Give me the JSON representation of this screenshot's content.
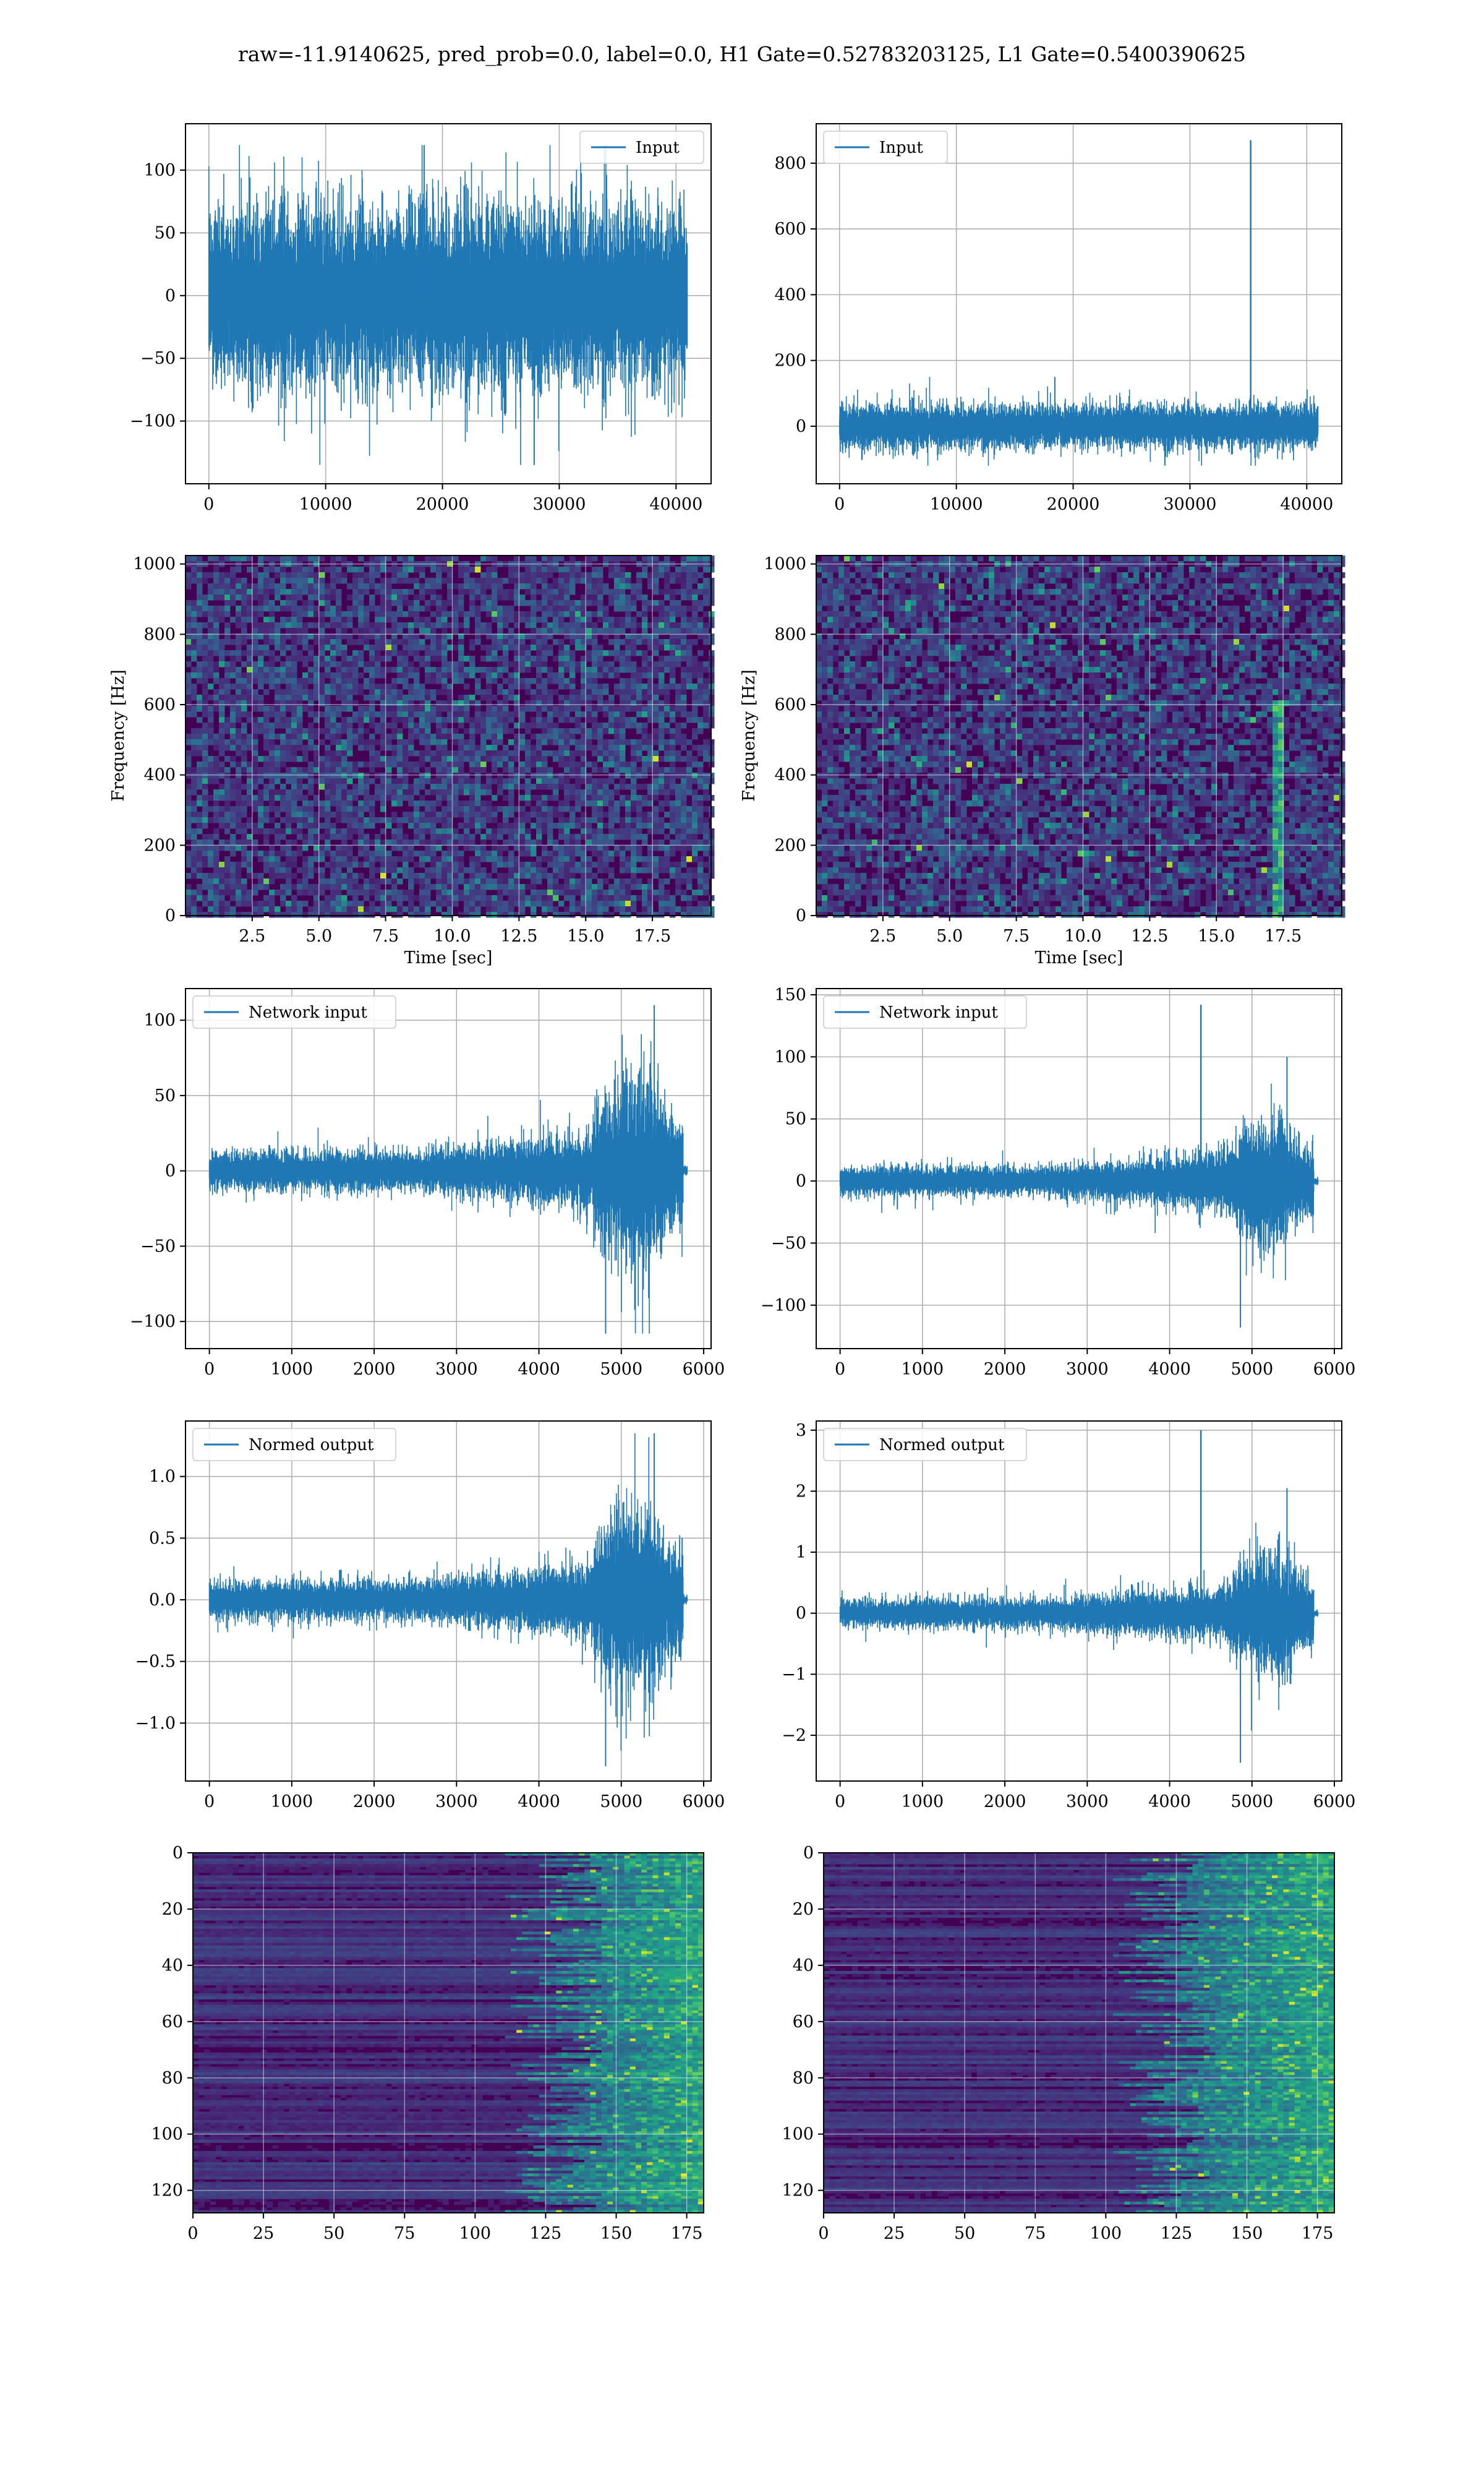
{
  "figure": {
    "suptitle": "raw=-11.9140625, pred_prob=0.0, label=0.0, H1 Gate=0.52783203125, L1 Gate=0.5400390625"
  },
  "colors": {
    "line": "#1f77b4",
    "grid": "#b0b0b0",
    "viridis_low": "#440154",
    "viridis_mid": "#21918c",
    "viridis_high": "#fde725"
  },
  "chart_data": [
    {
      "id": "h1-input",
      "type": "line",
      "series": [
        {
          "name": "Input"
        }
      ],
      "legend": "top-right",
      "grid": true,
      "xlim": [
        -2000,
        43000
      ],
      "ylim": [
        -150,
        137
      ],
      "xticks": [
        0,
        10000,
        20000,
        30000,
        40000
      ],
      "yticks": [
        -100,
        -50,
        0,
        50,
        100
      ],
      "xticklabels": [
        "0",
        "10000",
        "20000",
        "30000",
        "40000"
      ],
      "yticklabels": [
        "−100",
        "−50",
        "0",
        "50",
        "100"
      ],
      "signal": {
        "n": 40960,
        "x_end": 40960,
        "envelope": 55,
        "max": 120,
        "min": -135
      }
    },
    {
      "id": "l1-input",
      "type": "line",
      "series": [
        {
          "name": "Input"
        }
      ],
      "legend": "top-left",
      "grid": true,
      "xlim": [
        -2000,
        43000
      ],
      "ylim": [
        -175,
        920
      ],
      "xticks": [
        0,
        10000,
        20000,
        30000,
        40000
      ],
      "yticks": [
        0,
        200,
        400,
        600,
        800
      ],
      "xticklabels": [
        "0",
        "10000",
        "20000",
        "30000",
        "40000"
      ],
      "yticklabels": [
        "0",
        "200",
        "400",
        "600",
        "800"
      ],
      "signal": {
        "n": 40960,
        "x_end": 40960,
        "envelope": 50,
        "max": 150,
        "min": -120,
        "spike_x": 35200,
        "spike_y": 870
      }
    },
    {
      "id": "h1-spectrogram",
      "type": "heatmap",
      "xlabel": "Time [sec]",
      "ylabel": "Frequency [Hz]",
      "grid": true,
      "xlim": [
        0,
        19.7
      ],
      "ylim": [
        0,
        1024
      ],
      "xticks": [
        2.5,
        5.0,
        7.5,
        10.0,
        12.5,
        15.0,
        17.5
      ],
      "yticks": [
        0,
        200,
        400,
        600,
        800,
        1000
      ],
      "xticklabels": [
        "2.5",
        "5.0",
        "7.5",
        "10.0",
        "12.5",
        "15.0",
        "17.5"
      ],
      "yticklabels": [
        "0",
        "200",
        "400",
        "600",
        "800",
        "1000"
      ],
      "colormap": "viridis"
    },
    {
      "id": "l1-spectrogram",
      "type": "heatmap",
      "xlabel": "Time [sec]",
      "ylabel": "Frequency [Hz]",
      "grid": true,
      "xlim": [
        0,
        19.7
      ],
      "ylim": [
        0,
        1024
      ],
      "xticks": [
        2.5,
        5.0,
        7.5,
        10.0,
        12.5,
        15.0,
        17.5
      ],
      "yticks": [
        0,
        200,
        400,
        600,
        800,
        1000
      ],
      "xticklabels": [
        "2.5",
        "5.0",
        "7.5",
        "10.0",
        "12.5",
        "15.0",
        "17.5"
      ],
      "yticklabels": [
        "0",
        "200",
        "400",
        "600",
        "800",
        "1000"
      ],
      "colormap": "viridis",
      "glitch_time_sec": 17.2
    },
    {
      "id": "h1-network-input",
      "type": "line",
      "series": [
        {
          "name": "Network input"
        }
      ],
      "legend": "top-left",
      "grid": true,
      "xlim": [
        -290,
        6090
      ],
      "ylim": [
        -118,
        121
      ],
      "xticks": [
        0,
        1000,
        2000,
        3000,
        4000,
        5000,
        6000
      ],
      "yticks": [
        -100,
        -50,
        0,
        50,
        100
      ],
      "xticklabels": [
        "0",
        "1000",
        "2000",
        "3000",
        "4000",
        "5000",
        "6000"
      ],
      "yticklabels": [
        "−100",
        "−50",
        "0",
        "50",
        "100"
      ],
      "signal": {
        "n": 5790,
        "base": 10,
        "burst_start": 4650,
        "burst_end": 5750,
        "burst": 50,
        "max": 110,
        "min": -108,
        "tail_end": 5800
      }
    },
    {
      "id": "l1-network-input",
      "type": "line",
      "series": [
        {
          "name": "Network input"
        }
      ],
      "legend": "top-left",
      "grid": true,
      "xlim": [
        -290,
        6090
      ],
      "ylim": [
        -135,
        155
      ],
      "xticks": [
        0,
        1000,
        2000,
        3000,
        4000,
        5000,
        6000
      ],
      "yticks": [
        -100,
        -50,
        0,
        50,
        100,
        150
      ],
      "xticklabels": [
        "0",
        "1000",
        "2000",
        "3000",
        "4000",
        "5000",
        "6000"
      ],
      "yticklabels": [
        "−100",
        "−50",
        "0",
        "50",
        "100",
        "150"
      ],
      "signal": {
        "n": 5790,
        "base": 9,
        "burst_start": 4700,
        "burst_end": 5750,
        "burst": 40,
        "max": 100,
        "min": -118,
        "spike_x": 4380,
        "spike_y": 142,
        "tail_end": 5800
      }
    },
    {
      "id": "h1-normed-output",
      "type": "line",
      "series": [
        {
          "name": "Normed output"
        }
      ],
      "legend": "top-left",
      "grid": true,
      "xlim": [
        -290,
        6090
      ],
      "ylim": [
        -1.47,
        1.45
      ],
      "xticks": [
        0,
        1000,
        2000,
        3000,
        4000,
        5000,
        6000
      ],
      "yticks": [
        -1.0,
        -0.5,
        0.0,
        0.5,
        1.0
      ],
      "xticklabels": [
        "0",
        "1000",
        "2000",
        "3000",
        "4000",
        "5000",
        "6000"
      ],
      "yticklabels": [
        "−1.0",
        "−0.5",
        "0.0",
        "0.5",
        "1.0"
      ],
      "signal": {
        "n": 5790,
        "base": 0.12,
        "burst_start": 4650,
        "burst_end": 5750,
        "burst": 0.6,
        "max": 1.35,
        "min": -1.35,
        "tail_end": 5800
      }
    },
    {
      "id": "l1-normed-output",
      "type": "line",
      "series": [
        {
          "name": "Normed output"
        }
      ],
      "legend": "top-left",
      "grid": true,
      "xlim": [
        -290,
        6090
      ],
      "ylim": [
        -2.75,
        3.15
      ],
      "xticks": [
        0,
        1000,
        2000,
        3000,
        4000,
        5000,
        6000
      ],
      "yticks": [
        -2,
        -1,
        0,
        1,
        2,
        3
      ],
      "xticklabels": [
        "0",
        "1000",
        "2000",
        "3000",
        "4000",
        "5000",
        "6000"
      ],
      "yticklabels": [
        "−2",
        "−1",
        "0",
        "1",
        "2",
        "3"
      ],
      "signal": {
        "n": 5790,
        "base": 0.18,
        "burst_start": 4700,
        "burst_end": 5750,
        "burst": 0.8,
        "max": 2.05,
        "min": -2.45,
        "spike_x": 4380,
        "spike_y": 3.0,
        "tail_end": 5800
      }
    },
    {
      "id": "h1-feature-map",
      "type": "heatmap",
      "grid": true,
      "xlim": [
        0,
        181
      ],
      "ylim": [
        128,
        0
      ],
      "xticks": [
        0,
        25,
        50,
        75,
        100,
        125,
        150,
        175
      ],
      "yticks": [
        0,
        20,
        40,
        60,
        80,
        100,
        120
      ],
      "xticklabels": [
        "0",
        "25",
        "50",
        "75",
        "100",
        "125",
        "150",
        "175"
      ],
      "yticklabels": [
        "0",
        "20",
        "40",
        "60",
        "80",
        "100",
        "120"
      ],
      "colormap": "viridis"
    },
    {
      "id": "l1-feature-map",
      "type": "heatmap",
      "grid": true,
      "xlim": [
        0,
        181
      ],
      "ylim": [
        128,
        0
      ],
      "xticks": [
        0,
        25,
        50,
        75,
        100,
        125,
        150,
        175
      ],
      "yticks": [
        0,
        20,
        40,
        60,
        80,
        100,
        120
      ],
      "xticklabels": [
        "0",
        "25",
        "50",
        "75",
        "100",
        "125",
        "150",
        "175"
      ],
      "yticklabels": [
        "0",
        "20",
        "40",
        "60",
        "80",
        "100",
        "120"
      ],
      "colormap": "viridis"
    }
  ]
}
